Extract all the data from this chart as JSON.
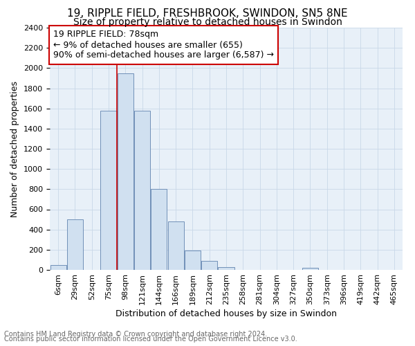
{
  "title1": "19, RIPPLE FIELD, FRESHBROOK, SWINDON, SN5 8NE",
  "title2": "Size of property relative to detached houses in Swindon",
  "xlabel": "Distribution of detached houses by size in Swindon",
  "ylabel": "Number of detached properties",
  "footer1": "Contains HM Land Registry data © Crown copyright and database right 2024.",
  "footer2": "Contains public sector information licensed under the Open Government Licence v3.0.",
  "categories": [
    "6sqm",
    "29sqm",
    "52sqm",
    "75sqm",
    "98sqm",
    "121sqm",
    "144sqm",
    "166sqm",
    "189sqm",
    "212sqm",
    "235sqm",
    "258sqm",
    "281sqm",
    "304sqm",
    "327sqm",
    "350sqm",
    "373sqm",
    "396sqm",
    "419sqm",
    "442sqm",
    "465sqm"
  ],
  "values": [
    50,
    500,
    0,
    1580,
    1950,
    1580,
    800,
    480,
    190,
    90,
    30,
    0,
    0,
    0,
    0,
    20,
    0,
    0,
    0,
    0,
    0
  ],
  "bar_color": "#d0e0f0",
  "bar_edge_color": "#7090b8",
  "red_line_index": 3.5,
  "annotation_line1": "19 RIPPLE FIELD: 78sqm",
  "annotation_line2": "← 9% of detached houses are smaller (655)",
  "annotation_line3": "90% of semi-detached houses are larger (6,587) →",
  "annotation_box_color": "#ffffff",
  "annotation_border_color": "#cc0000",
  "ylim": [
    0,
    2400
  ],
  "yticks": [
    0,
    200,
    400,
    600,
    800,
    1000,
    1200,
    1400,
    1600,
    1800,
    2000,
    2200,
    2400
  ],
  "grid_color": "#c8d8e8",
  "bg_color": "#e8f0f8",
  "fig_bg_color": "#ffffff",
  "title_fontsize": 11,
  "subtitle_fontsize": 10,
  "ylabel_fontsize": 9,
  "xlabel_fontsize": 9,
  "tick_fontsize": 8,
  "footer_fontsize": 7,
  "annot_fontsize": 9
}
